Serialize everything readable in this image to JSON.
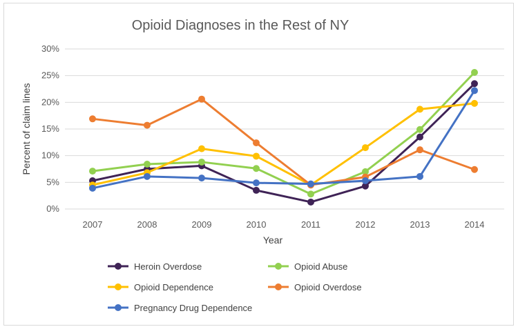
{
  "chart_data": {
    "type": "line",
    "title": "Opioid Diagnoses in the Rest of NY",
    "xlabel": "Year",
    "ylabel": "Percent of claim lines",
    "x": [
      "2007",
      "2008",
      "2009",
      "2010",
      "2011",
      "2012",
      "2013",
      "2014"
    ],
    "ylim": [
      0,
      30
    ],
    "yticks": [
      "0%",
      "5%",
      "10%",
      "15%",
      "20%",
      "25%",
      "30%"
    ],
    "grid": true,
    "legend_position": "bottom",
    "series": [
      {
        "name": "Heroin Overdose",
        "color": "#3f2356",
        "values": [
          5.3,
          7.5,
          8.1,
          3.5,
          1.3,
          4.3,
          13.5,
          23.5
        ]
      },
      {
        "name": "Opioid Abuse",
        "color": "#92d050",
        "values": [
          7.1,
          8.4,
          8.8,
          7.6,
          2.8,
          7.0,
          14.9,
          25.6
        ]
      },
      {
        "name": "Opioid Dependence",
        "color": "#ffc000",
        "values": [
          4.5,
          6.8,
          11.3,
          9.9,
          4.5,
          11.5,
          18.7,
          19.8
        ]
      },
      {
        "name": "Opioid Overdose",
        "color": "#ed7d31",
        "values": [
          16.9,
          15.7,
          20.6,
          12.4,
          4.5,
          6.0,
          11.1,
          7.4
        ]
      },
      {
        "name": "Pregnancy Drug Dependence",
        "color": "#4472c4",
        "values": [
          3.9,
          6.1,
          5.8,
          4.9,
          4.7,
          5.3,
          6.1,
          22.2
        ]
      }
    ]
  }
}
